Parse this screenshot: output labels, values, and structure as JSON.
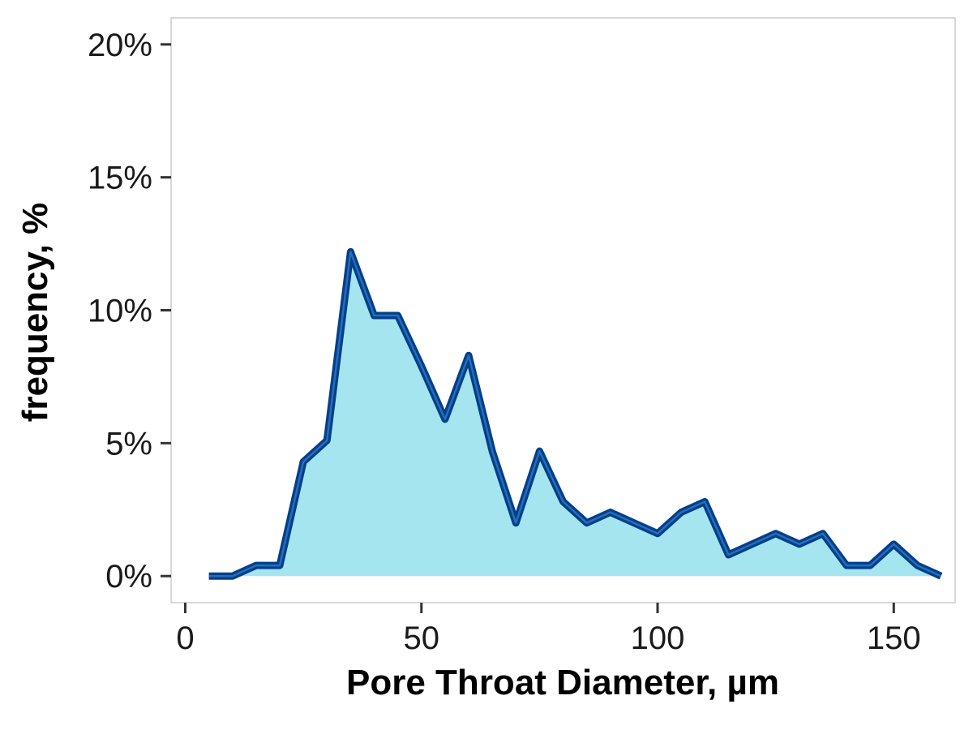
{
  "chart_data": {
    "type": "area",
    "title": "",
    "xlabel": "Pore Throat Diameter, µm",
    "ylabel": "frequency, %",
    "xlim": [
      -3,
      163
    ],
    "ylim": [
      -1,
      21
    ],
    "x_ticks": [
      0,
      50,
      100,
      150
    ],
    "x_tick_labels": [
      "0",
      "50",
      "100",
      "150"
    ],
    "y_ticks": [
      0,
      5,
      10,
      15,
      20
    ],
    "y_tick_labels": [
      "0%",
      "5%",
      "10%",
      "15%",
      "20%"
    ],
    "grid": false,
    "series": [
      {
        "x": [
          5,
          10,
          15,
          20,
          25,
          30,
          35,
          40,
          45,
          50,
          55,
          60,
          65,
          70,
          75,
          80,
          85,
          90,
          95,
          100,
          105,
          110,
          115,
          120,
          125,
          130,
          135,
          140,
          145,
          150,
          155,
          160
        ],
        "values": [
          0,
          0,
          0.4,
          0.4,
          4.3,
          5.1,
          12.2,
          9.8,
          9.8,
          7.9,
          5.9,
          8.3,
          4.7,
          2.0,
          4.7,
          2.8,
          2.0,
          2.4,
          2.0,
          1.6,
          2.4,
          2.8,
          0.8,
          1.2,
          1.6,
          1.2,
          1.6,
          0.4,
          0.4,
          1.2,
          0.4,
          0
        ]
      }
    ],
    "colors": {
      "fill": "#a4e5f0",
      "line": "#023f8c",
      "line_inner": "#2a6db5",
      "panel_border": "#cccccc",
      "tick": "#333333"
    }
  }
}
